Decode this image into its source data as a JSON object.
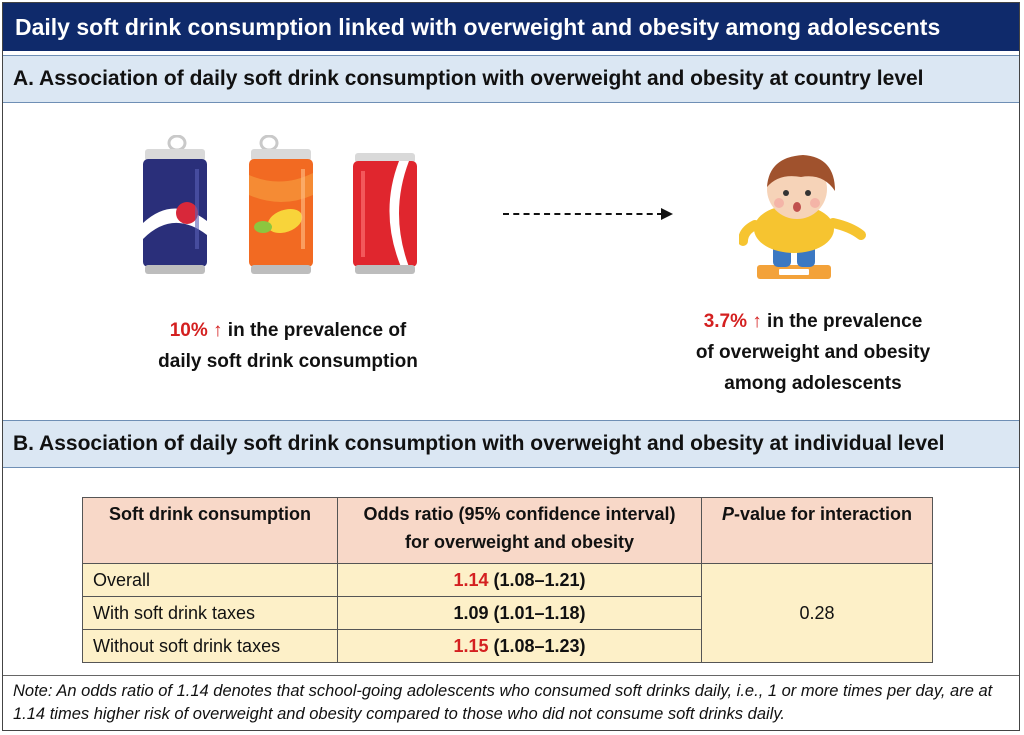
{
  "title": "Daily soft drink consumption linked with overweight and obesity among adolescents",
  "section_a": {
    "heading": "A.  Association of daily soft drink consumption with overweight and obesity at country level",
    "left_caption": {
      "value": "10% ↑",
      "line1": " in the prevalence of",
      "line2": "daily soft drink consumption"
    },
    "right_caption": {
      "value": "3.7% ↑",
      "line1": " in the prevalence",
      "line2": "of overweight and obesity",
      "line3": "among adolescents"
    }
  },
  "section_b": {
    "heading": "B.  Association of daily soft drink consumption with overweight and obesity at individual level",
    "table": {
      "headers": {
        "col1": "Soft drink consumption",
        "col2_line1": "Odds ratio (95% confidence interval)",
        "col2_line2": "for overweight and obesity",
        "col3_italic": "P",
        "col3_rest": "-value for interaction"
      },
      "rows": [
        {
          "label": "Overall",
          "or": "1.14",
          "ci": " (1.08–1.21)",
          "highlight": true
        },
        {
          "label": "With soft drink taxes",
          "or": "1.09",
          "ci": " (1.01–1.18)",
          "highlight": false
        },
        {
          "label": "Without soft drink taxes",
          "or": "1.15",
          "ci": " (1.08–1.23)",
          "highlight": true
        }
      ],
      "p_value": "0.28"
    }
  },
  "note": "Note: An odds ratio of 1.14 denotes that school-going adolescents who consumed soft drinks daily, i.e., 1 or more times per day, are at 1.14 times higher risk of overweight and obesity compared to those who did not consume soft drinks daily.",
  "colors": {
    "title_bg": "#0f2a6b",
    "section_bg": "#dbe7f3",
    "highlight": "#d42020",
    "header_cell_bg": "#f8d8c8",
    "body_cell_bg": "#fdf0c8"
  }
}
